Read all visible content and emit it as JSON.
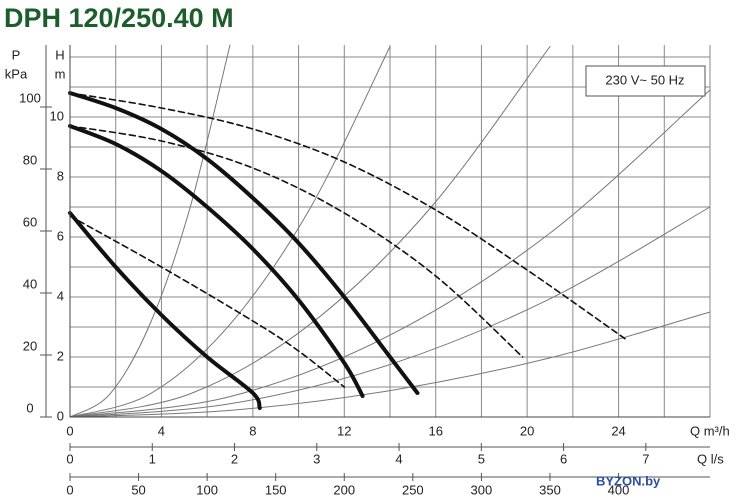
{
  "chart_data": {
    "type": "line",
    "title": "DPH 120/250.40 M",
    "annotation": "230 V~ 50 Hz",
    "watermark": "BYZON.by",
    "y_label": "H",
    "y_unit": "m",
    "y2_label": "P",
    "y2_unit": "kPa",
    "ylim": [
      0,
      12.4
    ],
    "yticks": [
      0,
      2,
      4,
      6,
      8,
      10
    ],
    "yminorticks": [
      1,
      3,
      5,
      7,
      9,
      11,
      12
    ],
    "y2lim": [
      0,
      120
    ],
    "y2ticks": [
      0,
      20,
      40,
      60,
      80,
      100
    ],
    "xlim": [
      0,
      28
    ],
    "xticks": [
      0,
      4,
      8,
      12,
      16,
      20,
      24
    ],
    "xminorticks": [
      2,
      6,
      10,
      14,
      18,
      22,
      26,
      28
    ],
    "x_label": "Q m³/h",
    "x2lim": [
      0,
      7.78
    ],
    "x2ticks": [
      0,
      1,
      2,
      3,
      4,
      5,
      6,
      7
    ],
    "x2_label": "Q l/s",
    "x3lim": [
      0,
      466.7
    ],
    "x3ticks": [
      0,
      50,
      100,
      150,
      200,
      250,
      300,
      350,
      400
    ],
    "grid": true,
    "series": [
      {
        "style": "thin",
        "color": "#777777",
        "x": [
          0,
          1.75,
          3.5,
          5.25,
          7
        ],
        "values": [
          0,
          0.77,
          3.1,
          6.97,
          12.4
        ]
      },
      {
        "style": "thin",
        "color": "#777777",
        "x": [
          0,
          3.5,
          7,
          10.5,
          14
        ],
        "values": [
          0,
          0.77,
          3.09,
          6.95,
          12.35
        ]
      },
      {
        "style": "thin",
        "color": "#777777",
        "x": [
          0,
          5.25,
          10.5,
          15.75,
          21
        ],
        "values": [
          0,
          0.77,
          3.09,
          6.95,
          12.35
        ]
      },
      {
        "style": "thin",
        "color": "#777777",
        "x": [
          0,
          7,
          14,
          21,
          28
        ],
        "values": [
          0,
          0.68,
          2.73,
          6.13,
          10.9
        ]
      },
      {
        "style": "thin",
        "color": "#777777",
        "x": [
          0,
          7,
          14,
          21,
          28
        ],
        "values": [
          0,
          0.44,
          1.75,
          3.94,
          7
        ]
      },
      {
        "style": "thin",
        "color": "#777777",
        "x": [
          0,
          7,
          14,
          21,
          28
        ],
        "values": [
          0,
          0.22,
          0.88,
          1.97,
          3.5
        ]
      },
      {
        "style": "dashed",
        "color": "#111111",
        "x": [
          0,
          4,
          8,
          12,
          16,
          20,
          24.3
        ],
        "values": [
          10.8,
          10.3,
          9.6,
          8.5,
          6.9,
          4.9,
          2.6
        ]
      },
      {
        "style": "dashed",
        "color": "#111111",
        "x": [
          0,
          4,
          8,
          12,
          16,
          19.8
        ],
        "values": [
          9.7,
          9.2,
          8.3,
          6.8,
          4.7,
          2.0
        ]
      },
      {
        "style": "dashed",
        "color": "#111111",
        "x": [
          0,
          4,
          8,
          10,
          12
        ],
        "values": [
          6.7,
          5.0,
          3.2,
          2.2,
          1.0
        ]
      },
      {
        "style": "solid",
        "color": "#111111",
        "x": [
          0,
          2,
          4,
          6,
          8,
          10,
          12,
          14,
          15.2
        ],
        "values": [
          10.8,
          10.3,
          9.6,
          8.6,
          7.3,
          5.8,
          4.0,
          2.0,
          0.8
        ]
      },
      {
        "style": "solid",
        "color": "#111111",
        "x": [
          0,
          2,
          4,
          6,
          8,
          10,
          12,
          12.8
        ],
        "values": [
          9.7,
          9.1,
          8.2,
          7.0,
          5.6,
          3.9,
          1.8,
          0.7
        ]
      },
      {
        "style": "solid",
        "color": "#111111",
        "x": [
          0,
          2,
          4,
          6,
          8,
          8.3
        ],
        "values": [
          6.8,
          5.0,
          3.4,
          2.0,
          0.8,
          0.3
        ]
      }
    ]
  }
}
